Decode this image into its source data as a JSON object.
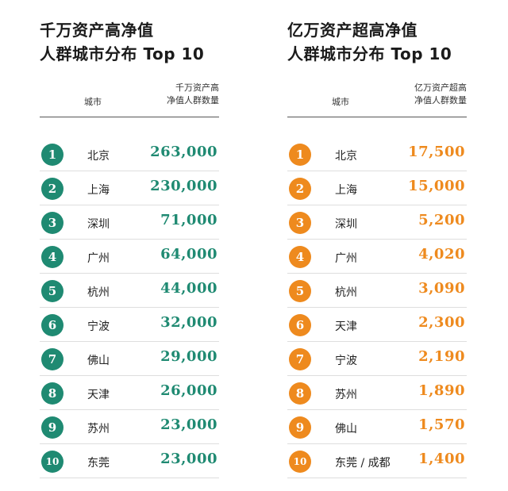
{
  "colors": {
    "left_accent": "#1f8a72",
    "right_accent": "#ee8a1e"
  },
  "left": {
    "title_line1": "千万资产高净值",
    "title_line2": "人群城市分布 Top 10",
    "header_city": "城市",
    "header_count_line1": "千万资产高",
    "header_count_line2": "净值人群数量",
    "rows": [
      {
        "rank": "1",
        "city": "北京",
        "count": "263,000"
      },
      {
        "rank": "2",
        "city": "上海",
        "count": "230,000"
      },
      {
        "rank": "3",
        "city": "深圳",
        "count": "71,000"
      },
      {
        "rank": "4",
        "city": "广州",
        "count": "64,000"
      },
      {
        "rank": "5",
        "city": "杭州",
        "count": "44,000"
      },
      {
        "rank": "6",
        "city": "宁波",
        "count": "32,000"
      },
      {
        "rank": "7",
        "city": "佛山",
        "count": "29,000"
      },
      {
        "rank": "8",
        "city": "天津",
        "count": "26,000"
      },
      {
        "rank": "9",
        "city": "苏州",
        "count": "23,000"
      },
      {
        "rank": "10",
        "city": "东莞",
        "count": "23,000"
      }
    ]
  },
  "right": {
    "title_line1": "亿万资产超高净值",
    "title_line2": "人群城市分布 Top 10",
    "header_city": "城市",
    "header_count_line1": "亿万资产超高",
    "header_count_line2": "净值人群数量",
    "rows": [
      {
        "rank": "1",
        "city": "北京",
        "count": "17,500"
      },
      {
        "rank": "2",
        "city": "上海",
        "count": "15,000"
      },
      {
        "rank": "3",
        "city": "深圳",
        "count": "5,200"
      },
      {
        "rank": "4",
        "city": "广州",
        "count": "4,020"
      },
      {
        "rank": "5",
        "city": "杭州",
        "count": "3,090"
      },
      {
        "rank": "6",
        "city": "天津",
        "count": "2,300"
      },
      {
        "rank": "7",
        "city": "宁波",
        "count": "2,190"
      },
      {
        "rank": "8",
        "city": "苏州",
        "count": "1,890"
      },
      {
        "rank": "9",
        "city": "佛山",
        "count": "1,570"
      },
      {
        "rank": "10",
        "city": "东莞 / 成都",
        "count": "1,400"
      }
    ]
  }
}
